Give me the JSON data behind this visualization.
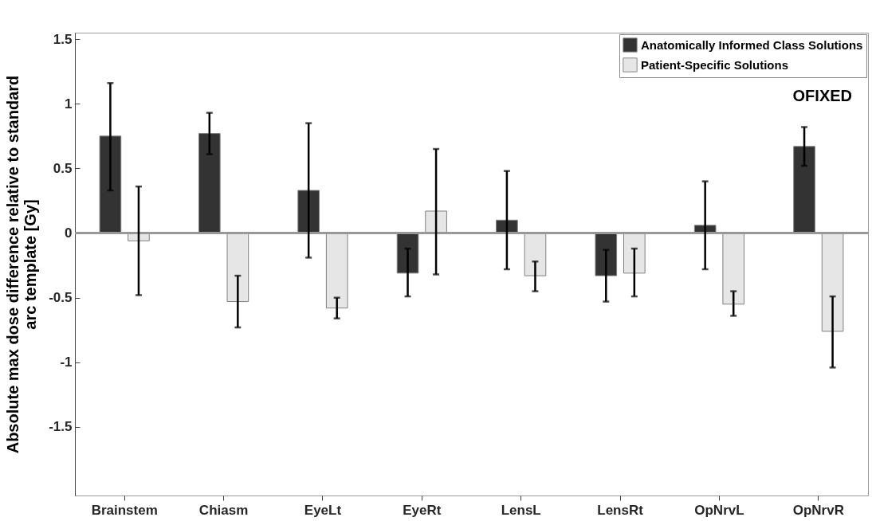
{
  "chart_data": {
    "type": "bar",
    "ylabel": "Absolute max dose difference relative to standard arc template [Gy]",
    "categories": [
      "Brainstem",
      "Chiasm",
      "EyeLt",
      "EyeRt",
      "LensL",
      "LensRt",
      "OpNrvL",
      "OpNrvR"
    ],
    "series": [
      {
        "name": "Anatomically Informed Class Solutions",
        "color": "#333333",
        "values": [
          0.75,
          0.77,
          0.33,
          -0.31,
          0.1,
          -0.33,
          0.06,
          0.67
        ],
        "errors": [
          [
            0.33,
            1.16
          ],
          [
            0.61,
            0.93
          ],
          [
            -0.19,
            0.85
          ],
          [
            -0.49,
            -0.12
          ],
          [
            -0.28,
            0.48
          ],
          [
            -0.53,
            -0.13
          ],
          [
            -0.28,
            0.4
          ],
          [
            0.52,
            0.82
          ]
        ]
      },
      {
        "name": "Patient-Specific Solutions",
        "color": "#e6e6e6",
        "values": [
          -0.06,
          -0.53,
          -0.58,
          0.17,
          -0.33,
          -0.31,
          -0.55,
          -0.76
        ],
        "errors": [
          [
            -0.48,
            0.36
          ],
          [
            -0.73,
            -0.33
          ],
          [
            -0.66,
            -0.5
          ],
          [
            -0.32,
            0.65
          ],
          [
            -0.45,
            -0.22
          ],
          [
            -0.49,
            -0.12
          ],
          [
            -0.64,
            -0.45
          ],
          [
            -1.04,
            -0.49
          ]
        ]
      }
    ],
    "ylim": [
      -2.03,
      1.55
    ],
    "yticks": [
      -1.5,
      -1,
      -0.5,
      0,
      0.5,
      1,
      1.5
    ],
    "legend": "top right",
    "annotations": [
      "OFIXED"
    ]
  }
}
